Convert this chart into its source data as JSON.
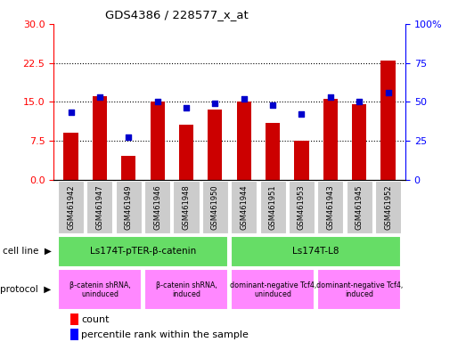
{
  "title": "GDS4386 / 228577_x_at",
  "samples": [
    "GSM461942",
    "GSM461947",
    "GSM461949",
    "GSM461946",
    "GSM461948",
    "GSM461950",
    "GSM461944",
    "GSM461951",
    "GSM461953",
    "GSM461943",
    "GSM461945",
    "GSM461952"
  ],
  "counts": [
    9.0,
    16.0,
    4.5,
    15.0,
    10.5,
    13.5,
    15.0,
    11.0,
    7.5,
    15.5,
    14.5,
    23.0
  ],
  "percentiles": [
    43,
    53,
    27,
    50,
    46,
    49,
    52,
    48,
    42,
    53,
    50,
    56
  ],
  "ylim_left": [
    0,
    30
  ],
  "ylim_right": [
    0,
    100
  ],
  "yticks_left": [
    0,
    7.5,
    15,
    22.5,
    30
  ],
  "yticks_right": [
    0,
    25,
    50,
    75,
    100
  ],
  "bar_color": "#cc0000",
  "scatter_color": "#0000cc",
  "cell_line_groups": [
    {
      "label": "Ls174T-pTER-β-catenin",
      "start": 0,
      "end": 6,
      "color": "#66dd66"
    },
    {
      "label": "Ls174T-L8",
      "start": 6,
      "end": 12,
      "color": "#66dd66"
    }
  ],
  "protocol_groups": [
    {
      "label": "β-catenin shRNA,\nuninduced",
      "start": 0,
      "end": 3,
      "color": "#ff88ff"
    },
    {
      "label": "β-catenin shRNA,\ninduced",
      "start": 3,
      "end": 6,
      "color": "#ff88ff"
    },
    {
      "label": "dominant-negative Tcf4,\nuninduced",
      "start": 6,
      "end": 9,
      "color": "#ff88ff"
    },
    {
      "label": "dominant-negative Tcf4,\ninduced",
      "start": 9,
      "end": 12,
      "color": "#ff88ff"
    }
  ],
  "background_color": "#ffffff",
  "tick_label_bg": "#cccccc"
}
